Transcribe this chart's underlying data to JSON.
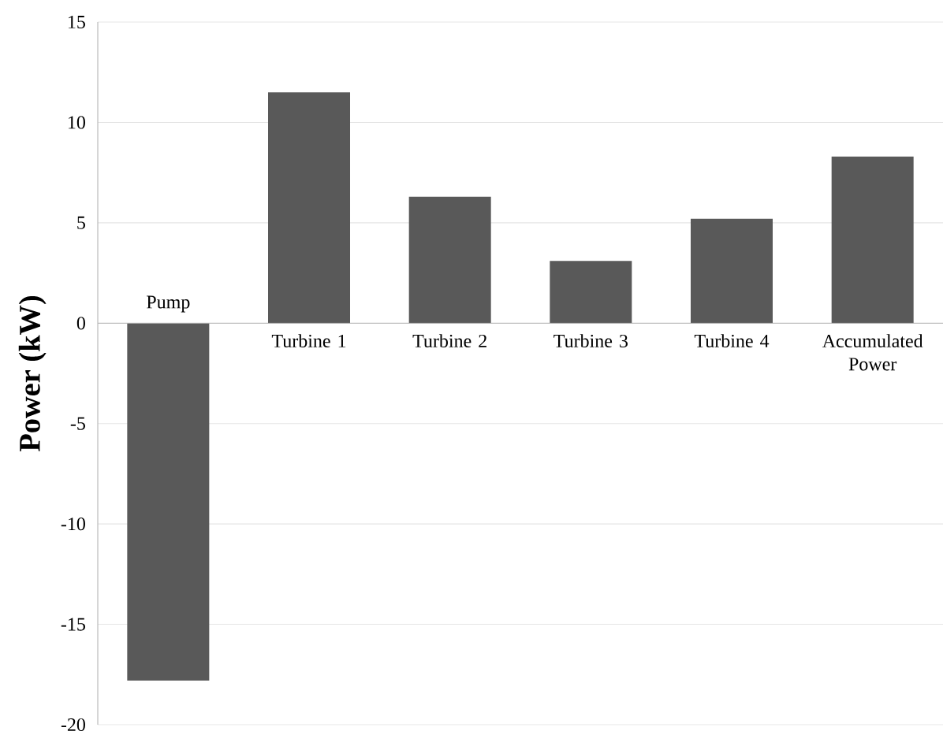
{
  "chart_data": {
    "type": "bar",
    "ylabel": "Power (kW)",
    "categories": [
      "Pump",
      "Turbine 1",
      "Turbine 2",
      "Turbine 3",
      "Turbine 4",
      "Accumulated Power"
    ],
    "values": [
      -17.8,
      11.5,
      6.3,
      3.1,
      5.2,
      8.3
    ],
    "color": "#595959",
    "ylim": [
      -20,
      15
    ],
    "yticks": [
      -20,
      -15,
      -10,
      -5,
      0,
      5,
      10,
      15
    ],
    "grid": "y"
  }
}
